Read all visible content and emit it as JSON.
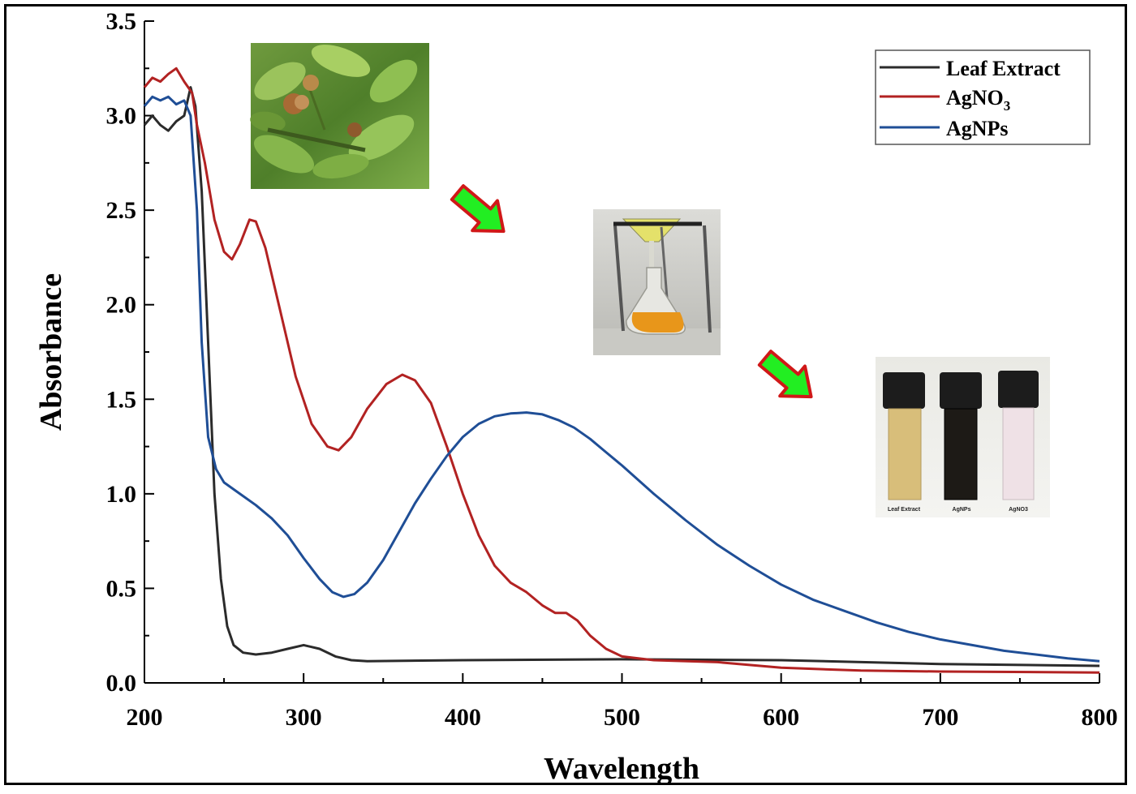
{
  "chart_data": {
    "type": "line",
    "xlabel": "Wavelength",
    "ylabel": "Absorbance",
    "xlim": [
      200,
      800
    ],
    "ylim": [
      0,
      3.5
    ],
    "x_ticks": [
      "200",
      "300",
      "400",
      "500",
      "600",
      "700",
      "800"
    ],
    "y_ticks": [
      "0.0",
      "0.5",
      "1.0",
      "1.5",
      "2.0",
      "2.5",
      "3.0",
      "3.5"
    ],
    "grid": false,
    "legend_position": "top-right",
    "series": [
      {
        "name": "Leaf Extract",
        "color": "#2b2b2b",
        "points": [
          [
            200,
            2.95
          ],
          [
            205,
            3.0
          ],
          [
            210,
            2.95
          ],
          [
            215,
            2.92
          ],
          [
            220,
            2.97
          ],
          [
            225,
            3.0
          ],
          [
            229,
            3.15
          ],
          [
            232,
            3.05
          ],
          [
            236,
            2.6
          ],
          [
            240,
            1.8
          ],
          [
            244,
            1.0
          ],
          [
            248,
            0.55
          ],
          [
            252,
            0.3
          ],
          [
            256,
            0.2
          ],
          [
            262,
            0.16
          ],
          [
            270,
            0.15
          ],
          [
            280,
            0.16
          ],
          [
            290,
            0.18
          ],
          [
            300,
            0.2
          ],
          [
            310,
            0.18
          ],
          [
            320,
            0.14
          ],
          [
            330,
            0.12
          ],
          [
            340,
            0.115
          ],
          [
            400,
            0.12
          ],
          [
            500,
            0.125
          ],
          [
            600,
            0.12
          ],
          [
            700,
            0.1
          ],
          [
            800,
            0.09
          ]
        ]
      },
      {
        "name": "AgNO3",
        "color": "#b22222",
        "points": [
          [
            200,
            3.15
          ],
          [
            205,
            3.2
          ],
          [
            210,
            3.18
          ],
          [
            215,
            3.22
          ],
          [
            220,
            3.25
          ],
          [
            225,
            3.18
          ],
          [
            230,
            3.12
          ],
          [
            233,
            2.95
          ],
          [
            238,
            2.75
          ],
          [
            244,
            2.45
          ],
          [
            250,
            2.28
          ],
          [
            255,
            2.24
          ],
          [
            260,
            2.32
          ],
          [
            266,
            2.45
          ],
          [
            270,
            2.44
          ],
          [
            276,
            2.3
          ],
          [
            285,
            1.98
          ],
          [
            295,
            1.62
          ],
          [
            305,
            1.37
          ],
          [
            315,
            1.25
          ],
          [
            322,
            1.23
          ],
          [
            330,
            1.3
          ],
          [
            340,
            1.45
          ],
          [
            352,
            1.58
          ],
          [
            362,
            1.63
          ],
          [
            370,
            1.6
          ],
          [
            380,
            1.48
          ],
          [
            390,
            1.25
          ],
          [
            400,
            1.0
          ],
          [
            410,
            0.78
          ],
          [
            420,
            0.62
          ],
          [
            430,
            0.53
          ],
          [
            440,
            0.48
          ],
          [
            450,
            0.41
          ],
          [
            458,
            0.37
          ],
          [
            465,
            0.37
          ],
          [
            472,
            0.33
          ],
          [
            480,
            0.25
          ],
          [
            490,
            0.18
          ],
          [
            500,
            0.14
          ],
          [
            520,
            0.12
          ],
          [
            560,
            0.11
          ],
          [
            600,
            0.08
          ],
          [
            650,
            0.065
          ],
          [
            700,
            0.06
          ],
          [
            800,
            0.055
          ]
        ]
      },
      {
        "name": "AgNPs",
        "color": "#1f4e96",
        "points": [
          [
            200,
            3.05
          ],
          [
            205,
            3.1
          ],
          [
            210,
            3.08
          ],
          [
            215,
            3.1
          ],
          [
            220,
            3.06
          ],
          [
            225,
            3.08
          ],
          [
            229,
            3.0
          ],
          [
            233,
            2.5
          ],
          [
            236,
            1.8
          ],
          [
            240,
            1.3
          ],
          [
            245,
            1.13
          ],
          [
            250,
            1.06
          ],
          [
            260,
            1.0
          ],
          [
            270,
            0.94
          ],
          [
            280,
            0.87
          ],
          [
            290,
            0.78
          ],
          [
            300,
            0.66
          ],
          [
            310,
            0.55
          ],
          [
            318,
            0.48
          ],
          [
            325,
            0.455
          ],
          [
            332,
            0.47
          ],
          [
            340,
            0.53
          ],
          [
            350,
            0.65
          ],
          [
            360,
            0.8
          ],
          [
            370,
            0.95
          ],
          [
            380,
            1.08
          ],
          [
            390,
            1.2
          ],
          [
            400,
            1.3
          ],
          [
            410,
            1.37
          ],
          [
            420,
            1.41
          ],
          [
            430,
            1.425
          ],
          [
            440,
            1.43
          ],
          [
            450,
            1.42
          ],
          [
            460,
            1.39
          ],
          [
            470,
            1.35
          ],
          [
            480,
            1.29
          ],
          [
            490,
            1.22
          ],
          [
            500,
            1.15
          ],
          [
            520,
            1.0
          ],
          [
            540,
            0.86
          ],
          [
            560,
            0.73
          ],
          [
            580,
            0.62
          ],
          [
            600,
            0.52
          ],
          [
            620,
            0.44
          ],
          [
            640,
            0.38
          ],
          [
            660,
            0.32
          ],
          [
            680,
            0.27
          ],
          [
            700,
            0.23
          ],
          [
            720,
            0.2
          ],
          [
            740,
            0.17
          ],
          [
            760,
            0.15
          ],
          [
            780,
            0.13
          ],
          [
            800,
            0.115
          ]
        ]
      }
    ]
  },
  "legend": {
    "items": [
      {
        "label": "Leaf Extract",
        "sub": ""
      },
      {
        "label": "AgNO",
        "sub": "3"
      },
      {
        "label": "AgNPs",
        "sub": ""
      }
    ]
  },
  "vials": {
    "labels": [
      "Leaf Extract",
      "AgNPs",
      "AgNO3"
    ]
  },
  "colors": {
    "arrow_fill": "#22ee22",
    "arrow_stroke": "#d01818"
  }
}
